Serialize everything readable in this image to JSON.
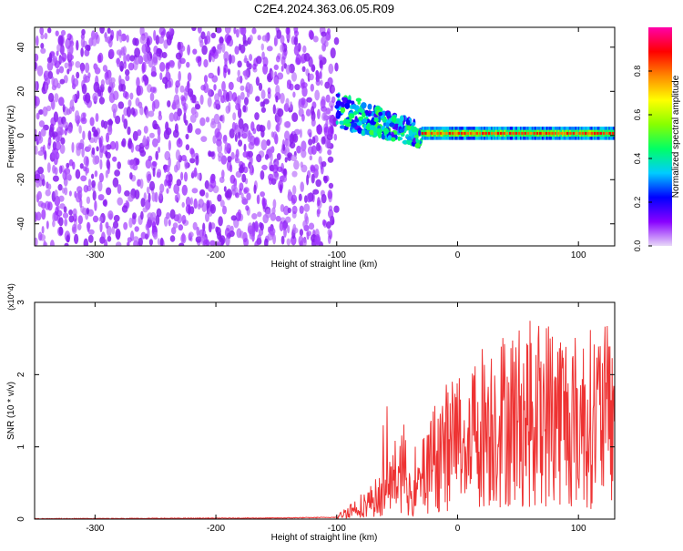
{
  "figure": {
    "title": "C2E4.2024.363.06.05.R09"
  },
  "chart_data": [
    {
      "type": "heatmap",
      "title": "C2E4.2024.363.06.05.R09",
      "xlabel": "Height of straight line (km)",
      "ylabel": "Frequency (Hz)",
      "xlim": [
        -350,
        130
      ],
      "ylim": [
        -50,
        49
      ],
      "xticks": [
        -300,
        -200,
        -100,
        0,
        100
      ],
      "yticks": [
        -40,
        -20,
        0,
        20,
        40
      ],
      "colorbar": {
        "label": "Normalized spectral amplitude",
        "range": [
          0,
          1
        ],
        "ticks": [
          0.0,
          0.2,
          0.4,
          0.6,
          0.8
        ],
        "colormap": [
          "#e8d8f8",
          "#8800ff",
          "#0000ff",
          "#00ccff",
          "#00ff66",
          "#88ff00",
          "#ffff00",
          "#ff8800",
          "#ff0000",
          "#ff00aa"
        ]
      },
      "regions": [
        {
          "name": "broadband noise",
          "x": [
            -350,
            -100
          ],
          "freq": [
            -50,
            49
          ],
          "amplitude": 0.1
        },
        {
          "name": "onset",
          "x": [
            -100,
            -30
          ],
          "freq_center": [
            12,
            0
          ],
          "spread": [
            8,
            5
          ],
          "amplitude": 0.35
        },
        {
          "name": "narrow line",
          "x": [
            -30,
            130
          ],
          "freq_center": 1,
          "spread": 1.5,
          "amplitude": 0.9
        }
      ]
    },
    {
      "type": "line",
      "xlabel": "Height of straight line (km)",
      "ylabel": "SNR (10 * v/v)",
      "scale_note": "(x10^4)",
      "xlim": [
        -350,
        130
      ],
      "ylim": [
        0,
        3
      ],
      "xticks": [
        -300,
        -200,
        -100,
        0,
        100
      ],
      "yticks": [
        0,
        1,
        2,
        3
      ],
      "color": "#ee3333",
      "series": [
        {
          "x": [
            -350,
            -150,
            -100,
            -90,
            -75,
            -60,
            -45,
            -38,
            -30,
            -20,
            -10,
            0,
            20,
            40,
            60,
            80,
            100,
            110,
            120,
            130
          ],
          "y": [
            0.0,
            0.01,
            0.02,
            0.12,
            0.22,
            0.38,
            0.75,
            0.2,
            0.55,
            0.85,
            1.0,
            1.1,
            1.3,
            1.4,
            1.45,
            1.5,
            1.35,
            1.4,
            1.45,
            1.35
          ]
        }
      ]
    }
  ]
}
